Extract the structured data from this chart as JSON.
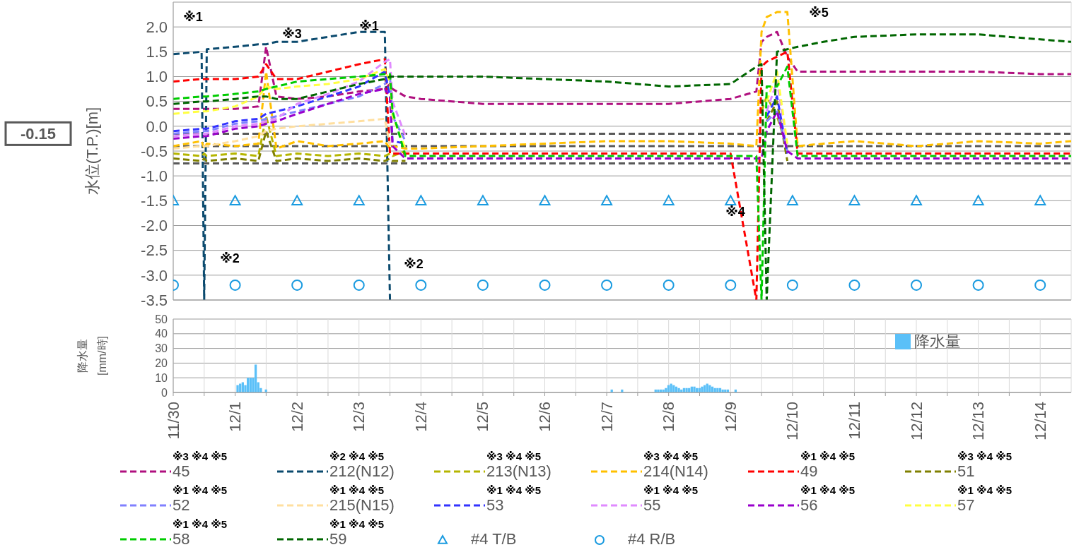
{
  "chart_data": [
    {
      "type": "line",
      "ylabel": "水位(T.P.)[m]",
      "tick_labels": "y",
      "grid": true,
      "legend": "bottom",
      "line_style": "dashed",
      "marker": "none",
      "x": [
        "--11-30T00:00",
        "--11-30T11:00",
        "--11-30T12:00",
        "--11-30T13:00",
        "--12-01T00:00",
        "--12-01T09:00",
        "--12-01T12:00",
        "--12-01T16:00",
        "--12-02T00:00",
        "--12-02T12:00",
        "--12-03T00:00",
        "--12-03T10:00",
        "--12-03T12:00",
        "--12-03T13:00",
        "--12-03T18:00",
        "--12-04T00:00",
        "--12-05T00:00",
        "--12-06T00:00",
        "--12-07T00:00",
        "--12-08T00:00",
        "--12-09T00:00",
        "--12-09T10:00",
        "--12-09T12:00",
        "--12-09T14:00",
        "--12-09T18:00",
        "--12-09T22:00",
        "--12-10T02:00",
        "--12-10T12:00",
        "--12-11T00:00",
        "--12-12T00:00",
        "--12-12T12:00",
        "--12-13T00:00",
        "--12-14T00:00",
        "--12-14T12:00"
      ],
      "xlim": [
        "--11-30T00:00",
        "--12-14T12:00"
      ],
      "xticks": [
        {
          "value": "--11-30T00:00",
          "label": "11/30"
        },
        {
          "value": "--12-01T00:00",
          "label": "12/1"
        },
        {
          "value": "--12-02T00:00",
          "label": "12/2"
        },
        {
          "value": "--12-03T00:00",
          "label": "12/3"
        },
        {
          "value": "--12-04T00:00",
          "label": "12/4"
        },
        {
          "value": "--12-05T00:00",
          "label": "12/5"
        },
        {
          "value": "--12-06T00:00",
          "label": "12/6"
        },
        {
          "value": "--12-07T00:00",
          "label": "12/7"
        },
        {
          "value": "--12-08T00:00",
          "label": "12/8"
        },
        {
          "value": "--12-09T00:00",
          "label": "12/9"
        },
        {
          "value": "--12-10T00:00",
          "label": "12/10"
        },
        {
          "value": "--12-11T00:00",
          "label": "12/11"
        },
        {
          "value": "--12-12T00:00",
          "label": "12/12"
        },
        {
          "value": "--12-13T00:00",
          "label": "12/13"
        },
        {
          "value": "--12-14T00:00",
          "label": "12/14"
        }
      ],
      "ylim": [
        -3.5,
        2.5
      ],
      "yticks": [
        {
          "value": -3.5,
          "label": "-3.5"
        },
        {
          "value": -3,
          "label": "-3.0"
        },
        {
          "value": -2.5,
          "label": "-2.5"
        },
        {
          "value": -2,
          "label": "-2.0"
        },
        {
          "value": -1.5,
          "label": "-1.5"
        },
        {
          "value": -1,
          "label": "-1.0"
        },
        {
          "value": -0.5,
          "label": "-0.5"
        },
        {
          "value": 0,
          "label": "0.0"
        },
        {
          "value": 0.5,
          "label": "0.5"
        },
        {
          "value": 1,
          "label": "1.0"
        },
        {
          "value": 1.5,
          "label": "1.5"
        },
        {
          "value": 2,
          "label": "2.0"
        }
      ],
      "ref_lines": [
        {
          "axis": "y",
          "value": -0.15,
          "label": "-0.15",
          "color": "#595959",
          "line_style": "dashed"
        },
        {
          "axis": "y",
          "value": -0.4,
          "color": "#595959",
          "line_style": "dashed"
        },
        {
          "axis": "y",
          "value": -0.75,
          "color": "#595959",
          "line_style": "dashed"
        }
      ],
      "annotations": [
        "※1",
        "※3",
        "※1",
        "※2",
        "※2",
        "※4",
        "※5"
      ],
      "series": [
        {
          "name": "※3 ※4 ※5\n45",
          "color": "#b0107f",
          "values": [
            0.35,
            0.35,
            0.35,
            0.35,
            0.35,
            0.4,
            1.6,
            0.6,
            0.55,
            0.6,
            0.7,
            0.75,
            0.85,
            0.75,
            0.6,
            0.55,
            0.45,
            0.45,
            0.45,
            0.45,
            0.55,
            0.7,
            1.7,
            1.8,
            1.9,
            1.4,
            1.1,
            1.1,
            1.1,
            1.1,
            1.1,
            1.1,
            1.05,
            1.05
          ]
        },
        {
          "name": "※2 ※4 ※5\n212(N12)",
          "color": "#0b4a6e",
          "values": [
            1.45,
            1.5,
            -3.5,
            1.55,
            1.6,
            1.65,
            1.65,
            1.7,
            1.7,
            1.8,
            1.9,
            1.9,
            -3.5,
            null,
            null,
            null,
            null,
            null,
            null,
            null,
            null,
            null,
            null,
            null,
            null,
            null,
            null,
            null,
            null,
            null,
            null,
            null,
            null,
            null
          ]
        },
        {
          "name": "※3 ※4 ※5\n213(N13)",
          "color": "#b5b500",
          "values": [
            -0.55,
            -0.6,
            -0.55,
            -0.6,
            -0.55,
            -0.6,
            0.2,
            -0.6,
            -0.55,
            -0.6,
            -0.55,
            -0.6,
            -0.55,
            -0.6,
            -0.5,
            null,
            null,
            null,
            null,
            null,
            null,
            null,
            0.3,
            0.6,
            0.2,
            -0.45,
            null,
            null,
            null,
            null,
            null,
            null,
            null,
            null
          ]
        },
        {
          "name": "※3 ※4 ※5\n214(N14)",
          "color": "#ffc000",
          "values": [
            -0.4,
            -0.3,
            -0.45,
            -0.35,
            -0.4,
            -0.35,
            1.1,
            -0.45,
            -0.3,
            -0.4,
            -0.35,
            -0.3,
            -0.45,
            -0.4,
            -0.45,
            -0.45,
            -0.4,
            -0.35,
            -0.3,
            -0.3,
            -0.35,
            -0.4,
            1.9,
            2.2,
            2.3,
            2.3,
            -0.4,
            -0.35,
            -0.3,
            -0.4,
            -0.35,
            -0.3,
            -0.35,
            -0.3
          ]
        },
        {
          "name": "※1 ※4 ※5\n49",
          "color": "#ff0000",
          "values": [
            0.9,
            0.95,
            0.95,
            0.95,
            0.95,
            1.0,
            1.25,
            0.95,
            0.95,
            1.1,
            1.25,
            1.35,
            -0.55,
            -0.55,
            -0.55,
            -0.55,
            -0.55,
            -0.55,
            -0.55,
            -0.55,
            -0.55,
            -3.5,
            1.2,
            1.3,
            1.4,
            1.5,
            -0.55,
            -0.55,
            -0.55,
            -0.55,
            -0.55,
            -0.55,
            -0.55,
            -0.55
          ]
        },
        {
          "name": "※3 ※4 ※5\n51",
          "color": "#808000",
          "values": [
            -0.65,
            -0.7,
            -0.65,
            -0.7,
            -0.65,
            -0.7,
            -0.1,
            -0.7,
            -0.65,
            -0.7,
            -0.65,
            -0.7,
            -0.65,
            -0.7,
            -0.7,
            null,
            null,
            null,
            null,
            null,
            null,
            null,
            null,
            0.1,
            0.5,
            -0.7,
            null,
            null,
            null,
            null,
            null,
            null,
            null,
            null
          ]
        },
        {
          "name": "※1 ※4 ※5\n52",
          "color": "#8080ff",
          "values": [
            -0.15,
            -0.1,
            -0.1,
            -0.1,
            0.05,
            0.1,
            0.15,
            0.2,
            0.3,
            0.45,
            0.6,
            0.85,
            1.0,
            0.2,
            -0.3,
            null,
            null,
            null,
            null,
            null,
            null,
            null,
            null,
            0.1,
            0.3,
            -0.5,
            null,
            null,
            null,
            null,
            null,
            null,
            null,
            null
          ]
        },
        {
          "name": "※1 ※4 ※5\n215(N15)",
          "color": "#ffdf9f",
          "values": [
            -0.45,
            -0.4,
            -0.4,
            -0.4,
            -0.3,
            -0.2,
            -0.1,
            -0.05,
            0,
            0.05,
            0.1,
            0.15,
            -0.4,
            null,
            null,
            null,
            null,
            null,
            null,
            null,
            null,
            null,
            null,
            null,
            null,
            null,
            null,
            null,
            null,
            null,
            null,
            null,
            null,
            null
          ]
        },
        {
          "name": "※1 ※4 ※5\n53",
          "color": "#3333ff",
          "values": [
            -0.1,
            -0.05,
            -0.05,
            -0.05,
            0.1,
            0.15,
            0.25,
            0.3,
            0.4,
            0.6,
            0.8,
            1.1,
            0.6,
            -0.3,
            -0.35,
            null,
            null,
            null,
            null,
            null,
            null,
            null,
            null,
            0.2,
            0.6,
            -0.55,
            null,
            null,
            null,
            null,
            null,
            null,
            null,
            null
          ]
        },
        {
          "name": "※1 ※4 ※5\n55",
          "color": "#e08aff",
          "values": [
            -0.2,
            -0.15,
            -0.15,
            -0.15,
            0,
            0.05,
            0.1,
            0.15,
            0.45,
            0.65,
            0.9,
            1.3,
            1.35,
            0.5,
            -0.2,
            null,
            null,
            null,
            null,
            null,
            null,
            null,
            null,
            0.3,
            0.9,
            -0.4,
            null,
            null,
            null,
            null,
            null,
            null,
            null,
            null
          ]
        },
        {
          "name": "※1 ※4 ※5\n56",
          "color": "#9900cc",
          "values": [
            -0.25,
            -0.2,
            -0.2,
            -0.2,
            -0.05,
            0,
            0.05,
            0.1,
            0.25,
            0.45,
            0.65,
            0.75,
            0.6,
            -0.4,
            -0.65,
            -0.65,
            -0.65,
            -0.65,
            -0.65,
            -0.65,
            -0.65,
            -0.65,
            -0.65,
            -0.1,
            0.3,
            -0.5,
            -0.65,
            -0.65,
            -0.65,
            -0.65,
            -0.65,
            -0.65,
            -0.65,
            -0.65
          ]
        },
        {
          "name": "※1 ※4 ※5\n57",
          "color": "#ffff40",
          "values": [
            0.25,
            0.3,
            0.3,
            0.3,
            0.4,
            0.6,
            0.8,
            0.75,
            0.8,
            0.85,
            0.95,
            1.15,
            0.9,
            0.2,
            -0.45,
            null,
            null,
            null,
            null,
            null,
            null,
            null,
            null,
            0.5,
            1.1,
            -0.35,
            null,
            null,
            null,
            null,
            null,
            null,
            null,
            null
          ]
        },
        {
          "name": "※1 ※4 ※5\n58",
          "color": "#00cc00",
          "values": [
            0.55,
            0.6,
            0.6,
            0.6,
            0.65,
            0.7,
            0.75,
            0.8,
            0.9,
            0.95,
            1.0,
            1.05,
            1.05,
            0.3,
            -0.6,
            -0.6,
            -0.6,
            -0.6,
            -0.6,
            -0.6,
            -0.6,
            -0.6,
            -3.5,
            0.8,
            0.8,
            1.2,
            -0.6,
            -0.6,
            -0.6,
            -0.6,
            -0.6,
            -0.6,
            -0.6,
            -0.6
          ]
        },
        {
          "name": "※1 ※4 ※5\n59",
          "color": "#006600",
          "values": [
            0.45,
            0.5,
            0.5,
            0.5,
            0.55,
            0.6,
            0.6,
            0.55,
            0.55,
            0.7,
            0.85,
            0.95,
            1.0,
            1.0,
            1.0,
            1.0,
            1.0,
            0.95,
            0.9,
            0.8,
            0.85,
            1.2,
            1.25,
            -3.5,
            1.5,
            1.55,
            1.6,
            1.7,
            1.8,
            1.85,
            1.85,
            1.85,
            1.75,
            1.7
          ]
        },
        {
          "name": "#4 T/B",
          "type": "scatter",
          "marker": "triangle",
          "color": "#1a9be0",
          "x": [
            "--11-30",
            "--12-01",
            "--12-02",
            "--12-03",
            "--12-04",
            "--12-05",
            "--12-06",
            "--12-07",
            "--12-08",
            "--12-09",
            "--12-10",
            "--12-11",
            "--12-12",
            "--12-13",
            "--12-14"
          ],
          "values": [
            -1.5,
            -1.5,
            -1.5,
            -1.5,
            -1.5,
            -1.5,
            -1.5,
            -1.5,
            -1.5,
            -1.5,
            -1.5,
            -1.5,
            -1.5,
            -1.5,
            -1.5
          ]
        },
        {
          "name": "#4 R/B",
          "type": "scatter",
          "marker": "circle",
          "color": "#1a9be0",
          "x": [
            "--11-30",
            "--12-01",
            "--12-02",
            "--12-03",
            "--12-04",
            "--12-05",
            "--12-06",
            "--12-07",
            "--12-08",
            "--12-09",
            "--12-10",
            "--12-11",
            "--12-12",
            "--12-13",
            "--12-14"
          ],
          "values": [
            -3.2,
            -3.2,
            -3.2,
            -3.2,
            -3.2,
            -3.2,
            -3.2,
            -3.2,
            -3.2,
            -3.2,
            -3.2,
            -3.2,
            -3.2,
            -3.2,
            -3.2
          ]
        }
      ]
    },
    {
      "type": "bar",
      "ylabel": "降水量\n[mm/時]",
      "grid": true,
      "legend": "top right",
      "x": [
        "--12-01T01:00",
        "--12-01T02:00",
        "--12-01T03:00",
        "--12-01T04:00",
        "--12-01T05:00",
        "--12-01T06:00",
        "--12-01T07:00",
        "--12-01T08:00",
        "--12-01T09:00",
        "--12-01T10:00",
        "--12-01T12:00",
        "--12-07T02:00",
        "--12-07T06:00",
        "--12-07T19:00",
        "--12-07T20:00",
        "--12-07T21:00",
        "--12-07T22:00",
        "--12-07T23:00",
        "--12-08T00:00",
        "--12-08T01:00",
        "--12-08T02:00",
        "--12-08T03:00",
        "--12-08T04:00",
        "--12-08T05:00",
        "--12-08T06:00",
        "--12-08T07:00",
        "--12-08T08:00",
        "--12-08T09:00",
        "--12-08T10:00",
        "--12-08T11:00",
        "--12-08T12:00",
        "--12-08T13:00",
        "--12-08T14:00",
        "--12-08T15:00",
        "--12-08T16:00",
        "--12-08T17:00",
        "--12-08T18:00",
        "--12-08T19:00",
        "--12-08T20:00",
        "--12-08T21:00",
        "--12-08T22:00",
        "--12-08T23:00",
        "--12-09T02:00"
      ],
      "xlim": [
        "--11-30T00:00",
        "--12-14T12:00"
      ],
      "xticks": [
        {
          "value": "--11-30T00:00",
          "label": "11/30"
        },
        {
          "value": "--11-30T12:00",
          "label": null
        },
        {
          "value": "--12-01T00:00",
          "label": "12/1"
        },
        {
          "value": "--12-01T12:00",
          "label": null
        },
        {
          "value": "--12-02T00:00",
          "label": "12/2"
        },
        {
          "value": "--12-02T12:00",
          "label": null
        },
        {
          "value": "--12-03T00:00",
          "label": "12/3"
        },
        {
          "value": "--12-03T12:00",
          "label": null
        },
        {
          "value": "--12-04T00:00",
          "label": "12/4"
        },
        {
          "value": "--12-04T12:00",
          "label": null
        },
        {
          "value": "--12-05T00:00",
          "label": "12/5"
        },
        {
          "value": "--12-05T12:00",
          "label": null
        },
        {
          "value": "--12-06T00:00",
          "label": "12/6"
        },
        {
          "value": "--12-06T12:00",
          "label": null
        },
        {
          "value": "--12-07T00:00",
          "label": "12/7"
        },
        {
          "value": "--12-07T12:00",
          "label": null
        },
        {
          "value": "--12-08T00:00",
          "label": "12/8"
        },
        {
          "value": "--12-08T12:00",
          "label": null
        },
        {
          "value": "--12-09T00:00",
          "label": "12/9"
        },
        {
          "value": "--12-09T12:00",
          "label": null
        },
        {
          "value": "--12-10T00:00",
          "label": "12/10"
        },
        {
          "value": "--12-10T12:00",
          "label": null
        },
        {
          "value": "--12-11T00:00",
          "label": "12/11"
        },
        {
          "value": "--12-11T12:00",
          "label": null
        },
        {
          "value": "--12-12T00:00",
          "label": "12/12"
        },
        {
          "value": "--12-12T12:00",
          "label": null
        },
        {
          "value": "--12-13T00:00",
          "label": "12/13"
        },
        {
          "value": "--12-13T12:00",
          "label": null
        },
        {
          "value": "--12-14T00:00",
          "label": "12/14"
        }
      ],
      "ylim": [
        0,
        50
      ],
      "yticks": [
        0,
        10,
        20,
        30,
        40,
        50
      ],
      "series": [
        {
          "name": "降水量",
          "color": "#5bc0f8",
          "values": [
            5,
            6,
            7,
            5,
            10,
            10,
            10,
            19,
            7,
            3,
            2,
            2,
            2,
            2,
            2,
            2,
            2,
            3,
            5,
            6,
            5,
            4,
            3,
            2,
            3,
            3,
            3,
            4,
            4,
            3,
            3,
            4,
            5,
            6,
            5,
            4,
            3,
            3,
            3,
            2,
            2,
            2,
            2
          ]
        }
      ]
    }
  ]
}
